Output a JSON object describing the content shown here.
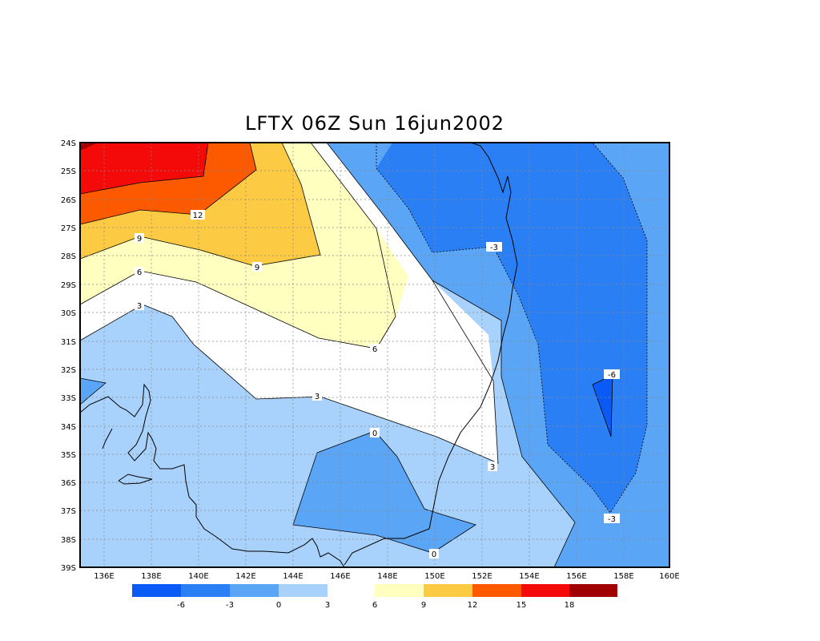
{
  "title": "LFTX 06Z Sun 16jun2002",
  "lat_ticks": [
    "24S",
    "25S",
    "26S",
    "27S",
    "28S",
    "29S",
    "30S",
    "31S",
    "32S",
    "33S",
    "34S",
    "35S",
    "36S",
    "37S",
    "38S",
    "39S"
  ],
  "lon_ticks": [
    "136E",
    "138E",
    "140E",
    "142E",
    "144E",
    "146E",
    "148E",
    "150E",
    "152E",
    "154E",
    "156E",
    "158E",
    "160E"
  ],
  "contour_labels": [
    "12",
    "9",
    "9",
    "6",
    "3",
    "6",
    "3",
    "0",
    "0",
    "3",
    "-3",
    "-3",
    "-6"
  ],
  "legend": {
    "colors": [
      "#0a5af5",
      "#2b7ff5",
      "#5aa5f5",
      "#a8d2fb",
      "#ffffff",
      "#ffffc0",
      "#fdca43",
      "#fd5a00",
      "#f50a0a",
      "#a00000"
    ],
    "labels": [
      "-6",
      "-3",
      "0",
      "3",
      "6",
      "9",
      "12",
      "15",
      "18"
    ]
  },
  "colors": {
    "frame": "#000000",
    "grid": "#888888"
  }
}
